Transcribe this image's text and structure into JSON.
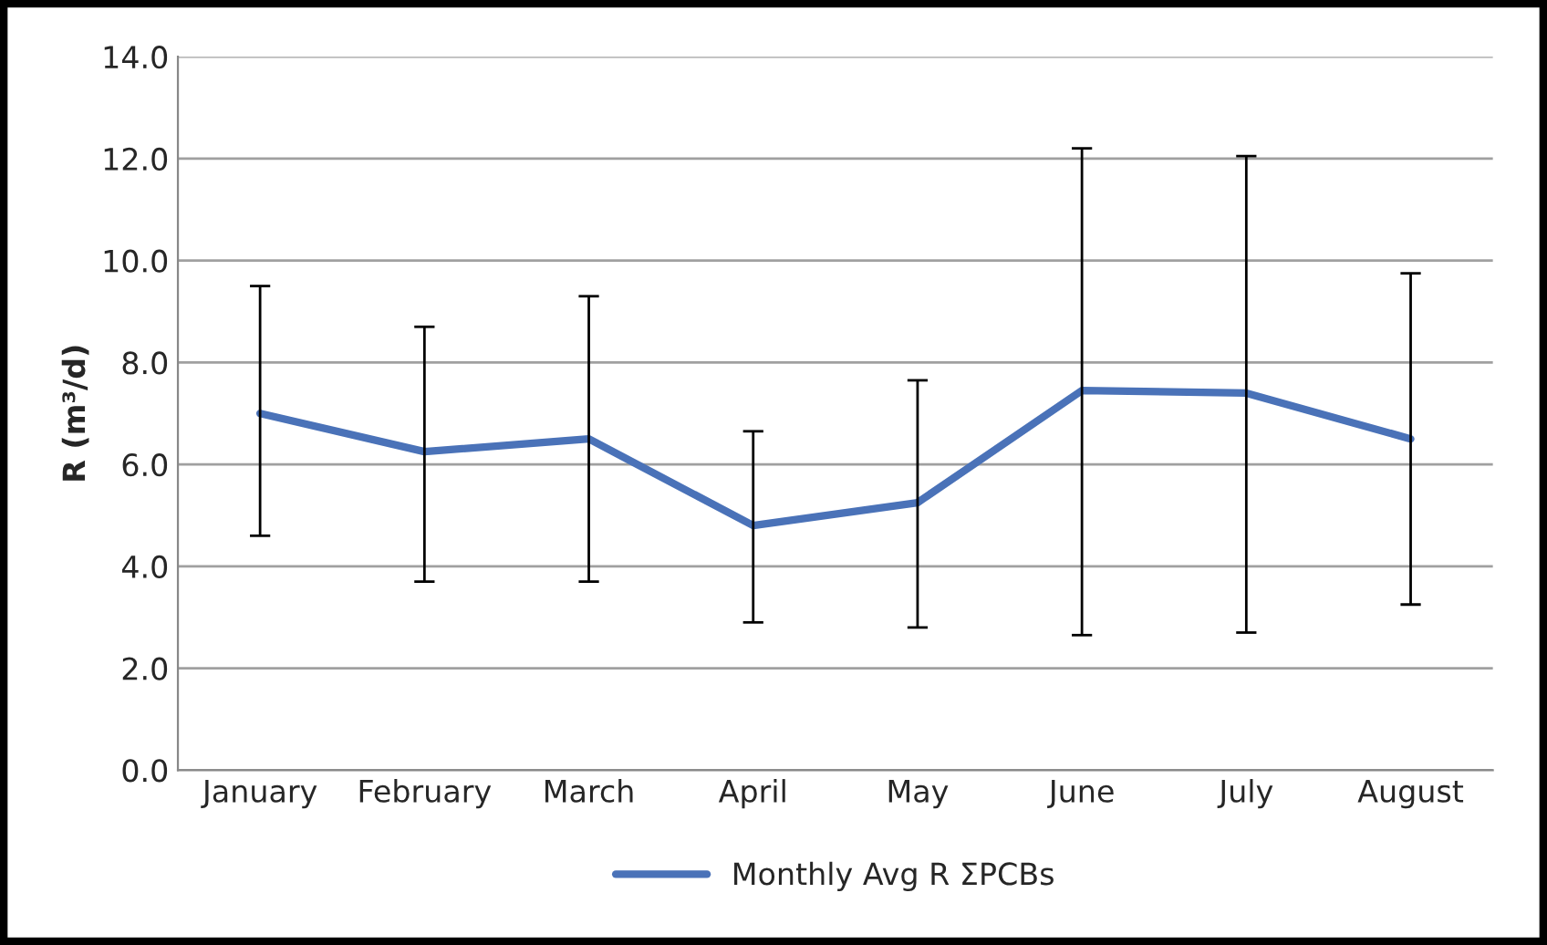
{
  "chart_data": {
    "type": "line",
    "ylabel": "R (m³/d)",
    "categories": [
      "January",
      "February",
      "March",
      "April",
      "May",
      "June",
      "July",
      "August"
    ],
    "series": [
      {
        "name": "Monthly Avg R ΣPCBs",
        "color": "#4a72b8",
        "values": [
          7.0,
          6.25,
          6.5,
          4.8,
          5.25,
          7.45,
          7.4,
          6.5
        ],
        "errors": [
          [
            4.6,
            9.5
          ],
          [
            3.7,
            8.7
          ],
          [
            3.7,
            9.3
          ],
          [
            2.9,
            6.65
          ],
          [
            2.8,
            7.65
          ],
          [
            2.65,
            12.2
          ],
          [
            2.7,
            12.05
          ],
          [
            3.25,
            9.75
          ]
        ]
      }
    ],
    "ylim": [
      0,
      14
    ],
    "yticks": [
      {
        "value": 0,
        "label": "0.0"
      },
      {
        "value": 2,
        "label": "2.0"
      },
      {
        "value": 4,
        "label": "4.0"
      },
      {
        "value": 6,
        "label": "6.0"
      },
      {
        "value": 8,
        "label": "8.0"
      },
      {
        "value": 10,
        "label": "10.0"
      },
      {
        "value": 12,
        "label": "12.0"
      },
      {
        "value": 14,
        "label": "14.0"
      }
    ],
    "grid": "y",
    "legend": "bottom",
    "marker": "none",
    "line_style": "solid"
  }
}
